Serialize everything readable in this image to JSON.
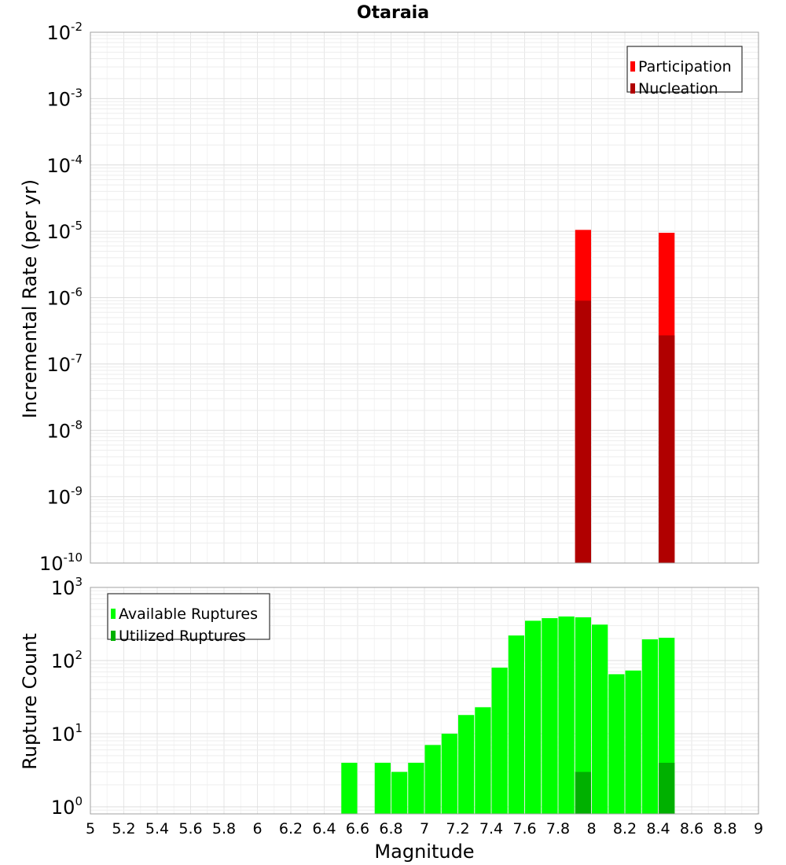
{
  "title": "Otaraia",
  "chart_data": [
    {
      "type": "bar",
      "title": "Otaraia",
      "xlabel": "Magnitude",
      "ylabel": "Incremental Rate (per yr)",
      "yscale": "log",
      "ylim": [
        1e-10,
        0.01
      ],
      "xlim": [
        5,
        9
      ],
      "y_tick_exponents": [
        -10,
        -9,
        -8,
        -7,
        -6,
        -5,
        -4,
        -3,
        -2
      ],
      "legend_position": "top-right",
      "grid": true,
      "series": [
        {
          "name": "Participation",
          "color": "#ff0000",
          "points": [
            {
              "x": 7.95,
              "y": 1.05e-05
            },
            {
              "x": 8.45,
              "y": 9.5e-06
            }
          ]
        },
        {
          "name": "Nucleation",
          "color": "#b00000",
          "points": [
            {
              "x": 7.95,
              "y": 9e-07
            },
            {
              "x": 8.45,
              "y": 2.7e-07
            }
          ]
        }
      ]
    },
    {
      "type": "bar",
      "xlabel": "Magnitude",
      "ylabel": "Rupture Count",
      "yscale": "log",
      "ylim": [
        0.8,
        1000
      ],
      "xlim": [
        5,
        9
      ],
      "y_tick_exponents": [
        0,
        1,
        2,
        3
      ],
      "x_ticks": [
        "5",
        "5.2",
        "5.4",
        "5.6",
        "5.8",
        "6",
        "6.2",
        "6.4",
        "6.6",
        "6.8",
        "7",
        "7.2",
        "7.4",
        "7.6",
        "7.8",
        "8",
        "8.2",
        "8.4",
        "8.6",
        "8.8",
        "9"
      ],
      "legend_position": "top-left",
      "grid": true,
      "series": [
        {
          "name": "Available Ruptures",
          "color": "#00ff00",
          "points": [
            {
              "x": 6.55,
              "y": 4
            },
            {
              "x": 6.75,
              "y": 4
            },
            {
              "x": 6.85,
              "y": 3
            },
            {
              "x": 6.95,
              "y": 4
            },
            {
              "x": 7.05,
              "y": 7
            },
            {
              "x": 7.15,
              "y": 10
            },
            {
              "x": 7.25,
              "y": 18
            },
            {
              "x": 7.35,
              "y": 23
            },
            {
              "x": 7.45,
              "y": 80
            },
            {
              "x": 7.55,
              "y": 220
            },
            {
              "x": 7.65,
              "y": 350
            },
            {
              "x": 7.75,
              "y": 380
            },
            {
              "x": 7.85,
              "y": 400
            },
            {
              "x": 7.95,
              "y": 390
            },
            {
              "x": 8.05,
              "y": 310
            },
            {
              "x": 8.15,
              "y": 65
            },
            {
              "x": 8.25,
              "y": 73
            },
            {
              "x": 8.35,
              "y": 195
            },
            {
              "x": 8.45,
              "y": 205
            }
          ]
        },
        {
          "name": "Utilized Ruptures",
          "color": "#00b000",
          "points": [
            {
              "x": 7.95,
              "y": 3
            },
            {
              "x": 8.45,
              "y": 4
            }
          ]
        }
      ]
    }
  ]
}
